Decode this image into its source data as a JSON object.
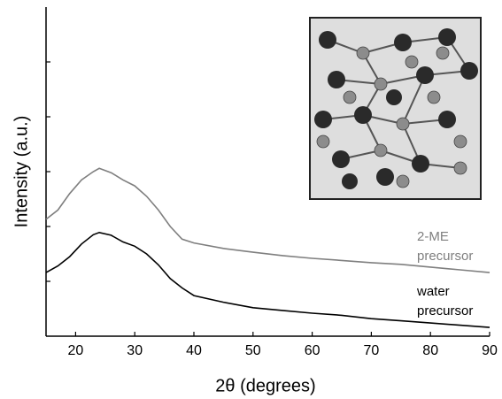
{
  "chart_data": {
    "type": "line",
    "xlabel": "2θ (degrees)",
    "ylabel": "Intensity (a.u.)",
    "xlim": [
      15,
      90
    ],
    "xticks": [
      20,
      30,
      40,
      50,
      60,
      70,
      80,
      90
    ],
    "ylim": [
      0,
      6
    ],
    "yticks": [
      1,
      2,
      3,
      4,
      5
    ],
    "series": [
      {
        "label_lines": [
          "2-ME",
          "precursor"
        ],
        "color": "#7f7f7f",
        "x": [
          15,
          17,
          19,
          21,
          23,
          24,
          26,
          28,
          30,
          32,
          34,
          36,
          38,
          40,
          45,
          50,
          55,
          60,
          65,
          70,
          75,
          80,
          85,
          90
        ],
        "values": [
          2.13,
          2.3,
          2.6,
          2.85,
          3.0,
          3.06,
          2.98,
          2.85,
          2.74,
          2.55,
          2.3,
          2.0,
          1.77,
          1.7,
          1.6,
          1.53,
          1.47,
          1.42,
          1.38,
          1.34,
          1.31,
          1.26,
          1.21,
          1.16
        ]
      },
      {
        "label_lines": [
          "water",
          "precursor"
        ],
        "color": "#000000",
        "x": [
          15,
          17,
          19,
          21,
          23,
          24,
          26,
          28,
          30,
          32,
          34,
          36,
          38,
          40,
          45,
          50,
          55,
          60,
          65,
          70,
          75,
          80,
          85,
          90
        ],
        "values": [
          1.16,
          1.28,
          1.45,
          1.68,
          1.85,
          1.89,
          1.84,
          1.72,
          1.64,
          1.5,
          1.3,
          1.05,
          0.88,
          0.74,
          0.62,
          0.52,
          0.47,
          0.42,
          0.38,
          0.32,
          0.28,
          0.24,
          0.2,
          0.16
        ]
      }
    ]
  }
}
